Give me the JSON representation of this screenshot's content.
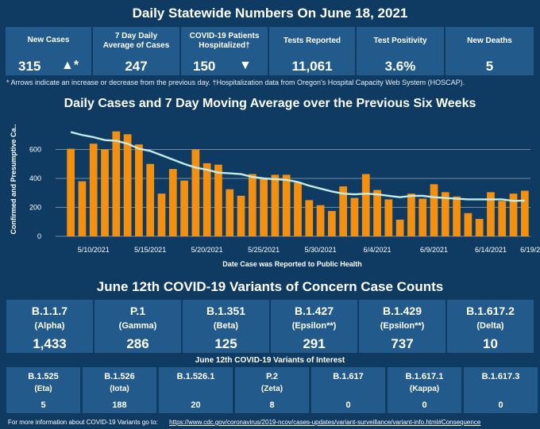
{
  "header": {
    "title": "Daily Statewide Numbers On June 18, 2021"
  },
  "summary": [
    {
      "label": "New Cases",
      "value": "315",
      "arrow": "▲*"
    },
    {
      "label": "7 Day Daily Average of Cases",
      "value": "247",
      "arrow": ""
    },
    {
      "label": "COVID-19 Patients Hospitalized†",
      "value": "150",
      "arrow": "▼"
    },
    {
      "label": "Tests Reported",
      "value": "11,061",
      "arrow": ""
    },
    {
      "label": "Test Positivity",
      "value": "3.6%",
      "arrow": ""
    },
    {
      "label": "New Deaths",
      "value": "5",
      "arrow": ""
    }
  ],
  "footnote": "* Arrows indicate an increase or decrease from the previous day. †Hospitalization data from Oregon's Hospital Capacity Web System (HOSCAP).",
  "chart_data": {
    "type": "bar",
    "title": "Daily Cases and 7 Day Moving Average over the Previous Six Weeks",
    "xlabel": "Date Case was Reported to Public Health",
    "ylabel": "Confirmed and Presumptive Ca..",
    "ylim": [
      0,
      800
    ],
    "yticks": [
      0,
      200,
      400,
      600
    ],
    "xticks": [
      {
        "label": "5/10/2021",
        "index": 2
      },
      {
        "label": "5/15/2021",
        "index": 7
      },
      {
        "label": "5/20/2021",
        "index": 12
      },
      {
        "label": "5/25/2021",
        "index": 17
      },
      {
        "label": "5/30/2021",
        "index": 22
      },
      {
        "label": "6/4/2021",
        "index": 27
      },
      {
        "label": "6/9/2021",
        "index": 32
      },
      {
        "label": "6/14/2021",
        "index": 37
      },
      {
        "label": "6/19/2021",
        "index": 41
      }
    ],
    "series": [
      {
        "name": "Daily Cases",
        "color": "#f5900f",
        "values": [
          605,
          380,
          640,
          600,
          725,
          705,
          635,
          500,
          295,
          465,
          385,
          600,
          505,
          495,
          325,
          280,
          430,
          400,
          425,
          425,
          370,
          250,
          215,
          175,
          345,
          265,
          430,
          320,
          255,
          115,
          295,
          260,
          360,
          305,
          275,
          160,
          120,
          305,
          245,
          295,
          315
        ]
      },
      {
        "name": "7 Day Moving Average",
        "color": "#c4ece6",
        "values": [
          720,
          700,
          685,
          665,
          660,
          640,
          605,
          590,
          560,
          530,
          500,
          475,
          460,
          440,
          435,
          430,
          410,
          400,
          395,
          390,
          375,
          350,
          330,
          310,
          295,
          290,
          295,
          290,
          280,
          270,
          280,
          280,
          270,
          265,
          260,
          255,
          255,
          255,
          255,
          245,
          247
        ]
      }
    ]
  },
  "voc": {
    "title": "June 12th  COVID-19 Variants of Concern Case Counts",
    "items": [
      {
        "name": "B.1.1.7",
        "sub": "(Alpha)",
        "value": "1,433"
      },
      {
        "name": "P.1",
        "sub": "(Gamma)",
        "value": "286"
      },
      {
        "name": "B.1.351",
        "sub": "(Beta)",
        "value": "125"
      },
      {
        "name": "B.1.427",
        "sub": "(Epsilon**)",
        "value": "291"
      },
      {
        "name": "B.1.429",
        "sub": "(Epsilon**)",
        "value": "737"
      },
      {
        "name": "B.1.617.2",
        "sub": "(Delta)",
        "value": "10"
      }
    ]
  },
  "voi": {
    "title": "June 12th COVID-19 Variants of Interest",
    "items": [
      {
        "name": "B.1.525",
        "sub": "(Eta)",
        "value": "5"
      },
      {
        "name": "B.1.526",
        "sub": "(Iota)",
        "value": "188"
      },
      {
        "name": "B.1.526.1",
        "sub": "",
        "value": "20"
      },
      {
        "name": "P.2",
        "sub": "(Zeta)",
        "value": "8"
      },
      {
        "name": "B.1.617",
        "sub": "",
        "value": "0"
      },
      {
        "name": "B.1.617.1",
        "sub": "(Kappa)",
        "value": "0"
      },
      {
        "name": "B.1.617.3",
        "sub": "",
        "value": "0"
      }
    ]
  },
  "footer": {
    "text": "For more information about COVID-19 Variants go to:",
    "link": "https://www.cdc.gov/coronavirus/2019-ncov/cases-updates/variant-surveillance/variant-info.html#Consequence"
  },
  "colors": {
    "background": "#0f3b63",
    "card": "#225a8c",
    "bar": "#f5900f",
    "line": "#c4ece6"
  }
}
